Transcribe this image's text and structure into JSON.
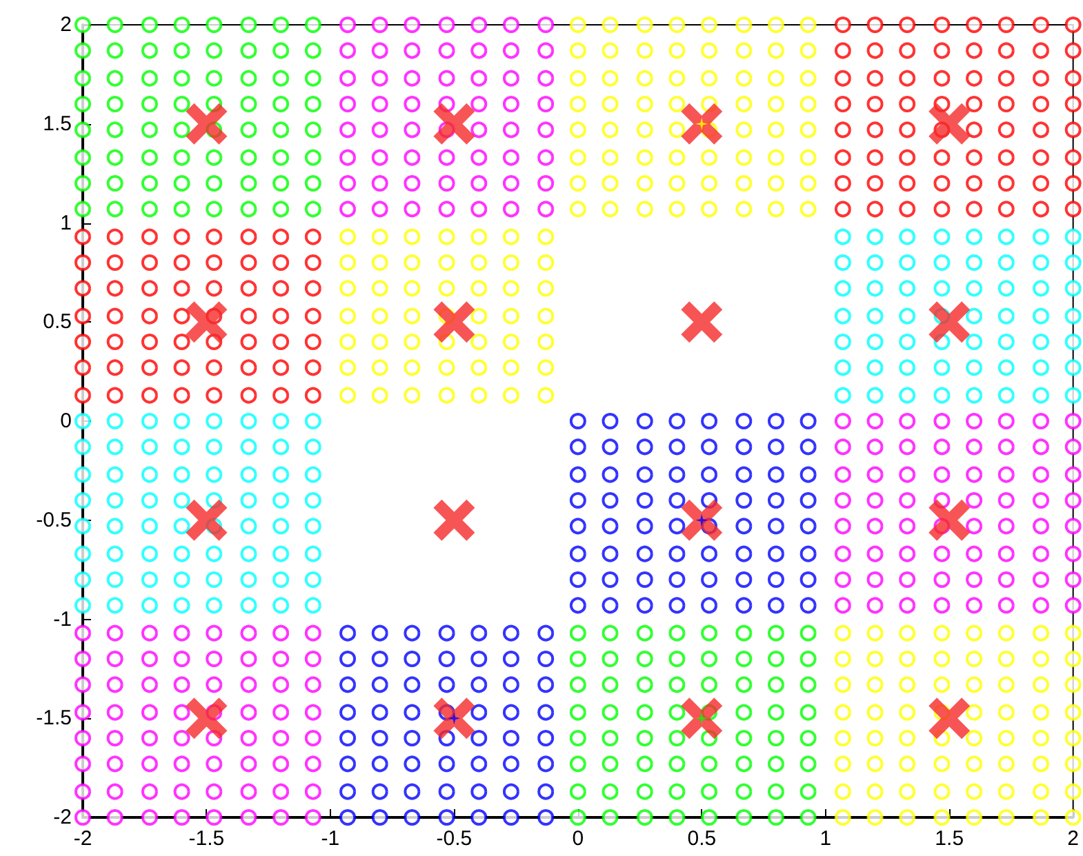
{
  "chart_data": {
    "type": "scatter",
    "xlim": [
      -2,
      2
    ],
    "ylim": [
      -2,
      2
    ],
    "xticks": [
      -2,
      -1.5,
      -1,
      -0.5,
      0,
      0.5,
      1,
      1.5,
      2
    ],
    "yticks": [
      -2,
      -1.5,
      -1,
      -0.5,
      0,
      0.5,
      1,
      1.5,
      2
    ],
    "grid": false,
    "series": [
      {
        "color": "#00ff00",
        "marker": "circle",
        "x": [
          -2,
          -2,
          -2,
          -2,
          -2,
          -2,
          -2,
          -2,
          -1.87,
          -1.87,
          -1.87,
          -1.87,
          -1.87,
          -1.87,
          -1.87,
          -1.87,
          -1.73,
          -1.73,
          -1.73,
          -1.73,
          -1.73,
          -1.73,
          -1.73,
          -1.73,
          -1.6,
          -1.6,
          -1.6,
          -1.6,
          -1.6,
          -1.6,
          -1.6,
          -1.6,
          -1.47,
          -1.47,
          -1.47,
          -1.47,
          -1.47,
          -1.47,
          -1.47,
          -1.47,
          -1.33,
          -1.33,
          -1.33,
          -1.33,
          -1.33,
          -1.33,
          -1.33,
          -1.33,
          -1.2,
          -1.2,
          -1.2,
          -1.2,
          -1.2,
          -1.2,
          -1.2,
          -1.2,
          -1.07,
          -1.07,
          -1.07,
          -1.07,
          -1.07,
          -1.07,
          -1.07,
          -1.07,
          0,
          0,
          0,
          0,
          0,
          0,
          0,
          0,
          0.13,
          0.13,
          0.13,
          0.13,
          0.13,
          0.13,
          0.13,
          0.13,
          0.27,
          0.27,
          0.27,
          0.27,
          0.27,
          0.27,
          0.27,
          0.27,
          0.4,
          0.4,
          0.4,
          0.4,
          0.4,
          0.4,
          0.4,
          0.4,
          0.53,
          0.53,
          0.53,
          0.53,
          0.53,
          0.53,
          0.53,
          0.53,
          0.67,
          0.67,
          0.67,
          0.67,
          0.67,
          0.67,
          0.67,
          0.67,
          0.8,
          0.8,
          0.8,
          0.8,
          0.8,
          0.8,
          0.8,
          0.8,
          0.93,
          0.93,
          0.93,
          0.93,
          0.93,
          0.93,
          0.93,
          0.93
        ],
        "values": [
          2,
          1.87,
          1.73,
          1.6,
          1.47,
          1.33,
          1.2,
          1.07,
          2,
          1.87,
          1.73,
          1.6,
          1.47,
          1.33,
          1.2,
          1.07,
          2,
          1.87,
          1.73,
          1.6,
          1.47,
          1.33,
          1.2,
          1.07,
          2,
          1.87,
          1.73,
          1.6,
          1.47,
          1.33,
          1.2,
          1.07,
          2,
          1.87,
          1.73,
          1.6,
          1.47,
          1.33,
          1.2,
          1.07,
          2,
          1.87,
          1.73,
          1.6,
          1.47,
          1.33,
          1.2,
          1.07,
          2,
          1.87,
          1.73,
          1.6,
          1.47,
          1.33,
          1.2,
          1.07,
          2,
          1.87,
          1.73,
          1.6,
          1.47,
          1.33,
          1.2,
          1.07,
          -1.07,
          -1.2,
          -1.33,
          -1.47,
          -1.6,
          -1.73,
          -1.87,
          -2,
          -1.07,
          -1.2,
          -1.33,
          -1.47,
          -1.6,
          -1.73,
          -1.87,
          -2,
          -1.07,
          -1.2,
          -1.33,
          -1.47,
          -1.6,
          -1.73,
          -1.87,
          -2,
          -1.07,
          -1.2,
          -1.33,
          -1.47,
          -1.6,
          -1.73,
          -1.87,
          -2,
          -1.07,
          -1.2,
          -1.33,
          -1.47,
          -1.6,
          -1.73,
          -1.87,
          -2,
          -1.07,
          -1.2,
          -1.33,
          -1.47,
          -1.6,
          -1.73,
          -1.87,
          -2,
          -1.07,
          -1.2,
          -1.33,
          -1.47,
          -1.6,
          -1.73,
          -1.87,
          -2,
          -1.07,
          -1.2,
          -1.33,
          -1.47,
          -1.6,
          -1.73,
          -1.87,
          -2
        ]
      },
      {
        "color": "#ff00ff",
        "marker": "circle",
        "x": [
          -0.93,
          -0.93,
          -0.93,
          -0.93,
          -0.93,
          -0.93,
          -0.93,
          -0.93,
          -0.8,
          -0.8,
          -0.8,
          -0.8,
          -0.8,
          -0.8,
          -0.8,
          -0.8,
          -0.67,
          -0.67,
          -0.67,
          -0.67,
          -0.67,
          -0.67,
          -0.67,
          -0.67,
          -0.53,
          -0.53,
          -0.53,
          -0.53,
          -0.53,
          -0.53,
          -0.53,
          -0.53,
          -0.4,
          -0.4,
          -0.4,
          -0.4,
          -0.4,
          -0.4,
          -0.4,
          -0.4,
          -0.27,
          -0.27,
          -0.27,
          -0.27,
          -0.27,
          -0.27,
          -0.27,
          -0.27,
          -0.13,
          -0.13,
          -0.13,
          -0.13,
          -0.13,
          -0.13,
          -0.13,
          -0.13,
          1.07,
          1.07,
          1.07,
          1.07,
          1.07,
          1.07,
          1.07,
          1.07,
          1.2,
          1.2,
          1.2,
          1.2,
          1.2,
          1.2,
          1.2,
          1.2,
          1.33,
          1.33,
          1.33,
          1.33,
          1.33,
          1.33,
          1.33,
          1.33,
          1.47,
          1.47,
          1.47,
          1.47,
          1.47,
          1.47,
          1.47,
          1.47,
          1.6,
          1.6,
          1.6,
          1.6,
          1.6,
          1.6,
          1.6,
          1.6,
          1.73,
          1.73,
          1.73,
          1.73,
          1.73,
          1.73,
          1.73,
          1.73,
          1.87,
          1.87,
          1.87,
          1.87,
          1.87,
          1.87,
          1.87,
          1.87,
          2,
          2,
          2,
          2,
          2,
          2,
          2,
          2,
          -2,
          -2,
          -2,
          -2,
          -2,
          -2,
          -2,
          -2,
          -1.87,
          -1.87,
          -1.87,
          -1.87,
          -1.87,
          -1.87,
          -1.87,
          -1.87,
          -1.73,
          -1.73,
          -1.73,
          -1.73,
          -1.73,
          -1.73,
          -1.73,
          -1.73,
          -1.6,
          -1.6,
          -1.6,
          -1.6,
          -1.6,
          -1.6,
          -1.6,
          -1.6,
          -1.47,
          -1.47,
          -1.47,
          -1.47,
          -1.47,
          -1.47,
          -1.47,
          -1.47,
          -1.33,
          -1.33,
          -1.33,
          -1.33,
          -1.33,
          -1.33,
          -1.33,
          -1.33,
          -1.2,
          -1.2,
          -1.2,
          -1.2,
          -1.2,
          -1.2,
          -1.2,
          -1.2,
          -1.07,
          -1.07,
          -1.07,
          -1.07,
          -1.07,
          -1.07,
          -1.07,
          -1.07
        ],
        "values": [
          2,
          1.87,
          1.73,
          1.6,
          1.47,
          1.33,
          1.2,
          1.07,
          2,
          1.87,
          1.73,
          1.6,
          1.47,
          1.33,
          1.2,
          1.07,
          2,
          1.87,
          1.73,
          1.6,
          1.47,
          1.33,
          1.2,
          1.07,
          2,
          1.87,
          1.73,
          1.6,
          1.47,
          1.33,
          1.2,
          1.07,
          2,
          1.87,
          1.73,
          1.6,
          1.47,
          1.33,
          1.2,
          1.07,
          2,
          1.87,
          1.73,
          1.6,
          1.47,
          1.33,
          1.2,
          1.07,
          2,
          1.87,
          1.73,
          1.6,
          1.47,
          1.33,
          1.2,
          1.07,
          0,
          -0.13,
          -0.27,
          -0.4,
          -0.53,
          -0.67,
          -0.8,
          -0.93,
          0,
          -0.13,
          -0.27,
          -0.4,
          -0.53,
          -0.67,
          -0.8,
          -0.93,
          0,
          -0.13,
          -0.27,
          -0.4,
          -0.53,
          -0.67,
          -0.8,
          -0.93,
          0,
          -0.13,
          -0.27,
          -0.4,
          -0.53,
          -0.67,
          -0.8,
          -0.93,
          0,
          -0.13,
          -0.27,
          -0.4,
          -0.53,
          -0.67,
          -0.8,
          -0.93,
          0,
          -0.13,
          -0.27,
          -0.4,
          -0.53,
          -0.67,
          -0.8,
          -0.93,
          0,
          -0.13,
          -0.27,
          -0.4,
          -0.53,
          -0.67,
          -0.8,
          -0.93,
          0,
          -0.13,
          -0.27,
          -0.4,
          -0.53,
          -0.67,
          -0.8,
          -0.93,
          -1.07,
          -1.2,
          -1.33,
          -1.47,
          -1.6,
          -1.73,
          -1.87,
          -2,
          -1.07,
          -1.2,
          -1.33,
          -1.47,
          -1.6,
          -1.73,
          -1.87,
          -2,
          -1.07,
          -1.2,
          -1.33,
          -1.47,
          -1.6,
          -1.73,
          -1.87,
          -2,
          -1.07,
          -1.2,
          -1.33,
          -1.47,
          -1.6,
          -1.73,
          -1.87,
          -2,
          -1.07,
          -1.2,
          -1.33,
          -1.47,
          -1.6,
          -1.73,
          -1.87,
          -2,
          -1.07,
          -1.2,
          -1.33,
          -1.47,
          -1.6,
          -1.73,
          -1.87,
          -2,
          -1.07,
          -1.2,
          -1.33,
          -1.47,
          -1.6,
          -1.73,
          -1.87,
          -2,
          -1.07,
          -1.2,
          -1.33,
          -1.47,
          -1.6,
          -1.73,
          -1.87,
          -2
        ]
      },
      {
        "color": "#ffff00",
        "marker": "circle",
        "x": [
          0,
          0,
          0,
          0,
          0,
          0,
          0,
          0,
          0.13,
          0.13,
          0.13,
          0.13,
          0.13,
          0.13,
          0.13,
          0.13,
          0.27,
          0.27,
          0.27,
          0.27,
          0.27,
          0.27,
          0.27,
          0.27,
          0.4,
          0.4,
          0.4,
          0.4,
          0.4,
          0.4,
          0.4,
          0.4,
          0.53,
          0.53,
          0.53,
          0.53,
          0.53,
          0.53,
          0.53,
          0.53,
          0.67,
          0.67,
          0.67,
          0.67,
          0.67,
          0.67,
          0.67,
          0.67,
          0.8,
          0.8,
          0.8,
          0.8,
          0.8,
          0.8,
          0.8,
          0.8,
          0.93,
          0.93,
          0.93,
          0.93,
          0.93,
          0.93,
          0.93,
          0.93,
          -0.93,
          -0.93,
          -0.93,
          -0.93,
          -0.93,
          -0.93,
          -0.93,
          -0.8,
          -0.8,
          -0.8,
          -0.8,
          -0.8,
          -0.8,
          -0.8,
          -0.67,
          -0.67,
          -0.67,
          -0.67,
          -0.67,
          -0.67,
          -0.67,
          -0.53,
          -0.53,
          -0.53,
          -0.53,
          -0.53,
          -0.53,
          -0.53,
          -0.4,
          -0.4,
          -0.4,
          -0.4,
          -0.4,
          -0.4,
          -0.4,
          -0.27,
          -0.27,
          -0.27,
          -0.27,
          -0.27,
          -0.27,
          -0.27,
          -0.13,
          -0.13,
          -0.13,
          -0.13,
          -0.13,
          -0.13,
          -0.13,
          1.07,
          1.07,
          1.07,
          1.07,
          1.07,
          1.07,
          1.07,
          1.07,
          1.2,
          1.2,
          1.2,
          1.2,
          1.2,
          1.2,
          1.2,
          1.2,
          1.33,
          1.33,
          1.33,
          1.33,
          1.33,
          1.33,
          1.33,
          1.33,
          1.47,
          1.47,
          1.47,
          1.47,
          1.47,
          1.47,
          1.47,
          1.47,
          1.6,
          1.6,
          1.6,
          1.6,
          1.6,
          1.6,
          1.6,
          1.6,
          1.73,
          1.73,
          1.73,
          1.73,
          1.73,
          1.73,
          1.73,
          1.73,
          1.87,
          1.87,
          1.87,
          1.87,
          1.87,
          1.87,
          1.87,
          1.87,
          2,
          2,
          2,
          2,
          2,
          2,
          2,
          2
        ],
        "values": [
          2,
          1.87,
          1.73,
          1.6,
          1.47,
          1.33,
          1.2,
          1.07,
          2,
          1.87,
          1.73,
          1.6,
          1.47,
          1.33,
          1.2,
          1.07,
          2,
          1.87,
          1.73,
          1.6,
          1.47,
          1.33,
          1.2,
          1.07,
          2,
          1.87,
          1.73,
          1.6,
          1.47,
          1.33,
          1.2,
          1.07,
          2,
          1.87,
          1.73,
          1.6,
          1.47,
          1.33,
          1.2,
          1.07,
          2,
          1.87,
          1.73,
          1.6,
          1.47,
          1.33,
          1.2,
          1.07,
          2,
          1.87,
          1.73,
          1.6,
          1.47,
          1.33,
          1.2,
          1.07,
          2,
          1.87,
          1.73,
          1.6,
          1.47,
          1.33,
          1.2,
          1.07,
          0.93,
          0.8,
          0.67,
          0.53,
          0.4,
          0.27,
          0.13,
          0.93,
          0.8,
          0.67,
          0.53,
          0.4,
          0.27,
          0.13,
          0.93,
          0.8,
          0.67,
          0.53,
          0.4,
          0.27,
          0.13,
          0.93,
          0.8,
          0.67,
          0.53,
          0.4,
          0.27,
          0.13,
          0.93,
          0.8,
          0.67,
          0.53,
          0.4,
          0.27,
          0.13,
          0.93,
          0.8,
          0.67,
          0.53,
          0.4,
          0.27,
          0.13,
          0.93,
          0.8,
          0.67,
          0.53,
          0.4,
          0.27,
          0.13,
          -1.07,
          -1.2,
          -1.33,
          -1.47,
          -1.6,
          -1.73,
          -1.87,
          -2,
          -1.07,
          -1.2,
          -1.33,
          -1.47,
          -1.6,
          -1.73,
          -1.87,
          -2,
          -1.07,
          -1.2,
          -1.33,
          -1.47,
          -1.6,
          -1.73,
          -1.87,
          -2,
          -1.07,
          -1.2,
          -1.33,
          -1.47,
          -1.6,
          -1.73,
          -1.87,
          -2,
          -1.07,
          -1.2,
          -1.33,
          -1.47,
          -1.6,
          -1.73,
          -1.87,
          -2,
          -1.07,
          -1.2,
          -1.33,
          -1.47,
          -1.6,
          -1.73,
          -1.87,
          -2,
          -1.07,
          -1.2,
          -1.33,
          -1.47,
          -1.6,
          -1.73,
          -1.87,
          -2,
          -1.07,
          -1.2,
          -1.33,
          -1.47,
          -1.6,
          -1.73,
          -1.87,
          -2
        ]
      },
      {
        "color": "#ff0000",
        "marker": "circle",
        "x": [
          1.07,
          1.07,
          1.07,
          1.07,
          1.07,
          1.07,
          1.07,
          1.07,
          1.2,
          1.2,
          1.2,
          1.2,
          1.2,
          1.2,
          1.2,
          1.2,
          1.33,
          1.33,
          1.33,
          1.33,
          1.33,
          1.33,
          1.33,
          1.33,
          1.47,
          1.47,
          1.47,
          1.47,
          1.47,
          1.47,
          1.47,
          1.47,
          1.6,
          1.6,
          1.6,
          1.6,
          1.6,
          1.6,
          1.6,
          1.6,
          1.73,
          1.73,
          1.73,
          1.73,
          1.73,
          1.73,
          1.73,
          1.73,
          1.87,
          1.87,
          1.87,
          1.87,
          1.87,
          1.87,
          1.87,
          1.87,
          2,
          2,
          2,
          2,
          2,
          2,
          2,
          2,
          -2,
          -2,
          -2,
          -2,
          -2,
          -2,
          -2,
          -1.87,
          -1.87,
          -1.87,
          -1.87,
          -1.87,
          -1.87,
          -1.87,
          -1.73,
          -1.73,
          -1.73,
          -1.73,
          -1.73,
          -1.73,
          -1.73,
          -1.6,
          -1.6,
          -1.6,
          -1.6,
          -1.6,
          -1.6,
          -1.6,
          -1.47,
          -1.47,
          -1.47,
          -1.47,
          -1.47,
          -1.47,
          -1.47,
          -1.33,
          -1.33,
          -1.33,
          -1.33,
          -1.33,
          -1.33,
          -1.33,
          -1.2,
          -1.2,
          -1.2,
          -1.2,
          -1.2,
          -1.2,
          -1.2,
          -1.07,
          -1.07,
          -1.07,
          -1.07,
          -1.07,
          -1.07,
          -1.07
        ],
        "values": [
          2,
          1.87,
          1.73,
          1.6,
          1.47,
          1.33,
          1.2,
          1.07,
          2,
          1.87,
          1.73,
          1.6,
          1.47,
          1.33,
          1.2,
          1.07,
          2,
          1.87,
          1.73,
          1.6,
          1.47,
          1.33,
          1.2,
          1.07,
          2,
          1.87,
          1.73,
          1.6,
          1.47,
          1.33,
          1.2,
          1.07,
          2,
          1.87,
          1.73,
          1.6,
          1.47,
          1.33,
          1.2,
          1.07,
          2,
          1.87,
          1.73,
          1.6,
          1.47,
          1.33,
          1.2,
          1.07,
          2,
          1.87,
          1.73,
          1.6,
          1.47,
          1.33,
          1.2,
          1.07,
          2,
          1.87,
          1.73,
          1.6,
          1.47,
          1.33,
          1.2,
          1.07,
          0.93,
          0.8,
          0.67,
          0.53,
          0.4,
          0.27,
          0.13,
          0.93,
          0.8,
          0.67,
          0.53,
          0.4,
          0.27,
          0.13,
          0.93,
          0.8,
          0.67,
          0.53,
          0.4,
          0.27,
          0.13,
          0.93,
          0.8,
          0.67,
          0.53,
          0.4,
          0.27,
          0.13,
          0.93,
          0.8,
          0.67,
          0.53,
          0.4,
          0.27,
          0.13,
          0.93,
          0.8,
          0.67,
          0.53,
          0.4,
          0.27,
          0.13,
          0.93,
          0.8,
          0.67,
          0.53,
          0.4,
          0.27,
          0.13,
          0.93,
          0.8,
          0.67,
          0.53,
          0.4,
          0.27,
          0.13
        ]
      },
      {
        "color": "#00ffff",
        "marker": "circle",
        "x": [
          1.07,
          1.07,
          1.07,
          1.07,
          1.07,
          1.07,
          1.07,
          1.2,
          1.2,
          1.2,
          1.2,
          1.2,
          1.2,
          1.2,
          1.33,
          1.33,
          1.33,
          1.33,
          1.33,
          1.33,
          1.33,
          1.47,
          1.47,
          1.47,
          1.47,
          1.47,
          1.47,
          1.47,
          1.6,
          1.6,
          1.6,
          1.6,
          1.6,
          1.6,
          1.6,
          1.73,
          1.73,
          1.73,
          1.73,
          1.73,
          1.73,
          1.73,
          1.87,
          1.87,
          1.87,
          1.87,
          1.87,
          1.87,
          1.87,
          2,
          2,
          2,
          2,
          2,
          2,
          2,
          -2,
          -2,
          -2,
          -2,
          -2,
          -2,
          -2,
          -2,
          -1.87,
          -1.87,
          -1.87,
          -1.87,
          -1.87,
          -1.87,
          -1.87,
          -1.87,
          -1.73,
          -1.73,
          -1.73,
          -1.73,
          -1.73,
          -1.73,
          -1.73,
          -1.73,
          -1.6,
          -1.6,
          -1.6,
          -1.6,
          -1.6,
          -1.6,
          -1.6,
          -1.6,
          -1.47,
          -1.47,
          -1.47,
          -1.47,
          -1.47,
          -1.47,
          -1.47,
          -1.47,
          -1.33,
          -1.33,
          -1.33,
          -1.33,
          -1.33,
          -1.33,
          -1.33,
          -1.33,
          -1.2,
          -1.2,
          -1.2,
          -1.2,
          -1.2,
          -1.2,
          -1.2,
          -1.2,
          -1.07,
          -1.07,
          -1.07,
          -1.07,
          -1.07,
          -1.07,
          -1.07,
          -1.07
        ],
        "values": [
          0.93,
          0.8,
          0.67,
          0.53,
          0.4,
          0.27,
          0.13,
          0.93,
          0.8,
          0.67,
          0.53,
          0.4,
          0.27,
          0.13,
          0.93,
          0.8,
          0.67,
          0.53,
          0.4,
          0.27,
          0.13,
          0.93,
          0.8,
          0.67,
          0.53,
          0.4,
          0.27,
          0.13,
          0.93,
          0.8,
          0.67,
          0.53,
          0.4,
          0.27,
          0.13,
          0.93,
          0.8,
          0.67,
          0.53,
          0.4,
          0.27,
          0.13,
          0.93,
          0.8,
          0.67,
          0.53,
          0.4,
          0.27,
          0.13,
          0.93,
          0.8,
          0.67,
          0.53,
          0.4,
          0.27,
          0.13,
          0,
          -0.13,
          -0.27,
          -0.4,
          -0.53,
          -0.67,
          -0.8,
          -0.93,
          0,
          -0.13,
          -0.27,
          -0.4,
          -0.53,
          -0.67,
          -0.8,
          -0.93,
          0,
          -0.13,
          -0.27,
          -0.4,
          -0.53,
          -0.67,
          -0.8,
          -0.93,
          0,
          -0.13,
          -0.27,
          -0.4,
          -0.53,
          -0.67,
          -0.8,
          -0.93,
          0,
          -0.13,
          -0.27,
          -0.4,
          -0.53,
          -0.67,
          -0.8,
          -0.93,
          0,
          -0.13,
          -0.27,
          -0.4,
          -0.53,
          -0.67,
          -0.8,
          -0.93,
          0,
          -0.13,
          -0.27,
          -0.4,
          -0.53,
          -0.67,
          -0.8,
          -0.93,
          0,
          -0.13,
          -0.27,
          -0.4,
          -0.53,
          -0.67,
          -0.8,
          -0.93
        ]
      },
      {
        "color": "#0000ff",
        "marker": "circle",
        "x": [
          0,
          0,
          0,
          0,
          0,
          0,
          0,
          0,
          0.13,
          0.13,
          0.13,
          0.13,
          0.13,
          0.13,
          0.13,
          0.13,
          0.27,
          0.27,
          0.27,
          0.27,
          0.27,
          0.27,
          0.27,
          0.27,
          0.4,
          0.4,
          0.4,
          0.4,
          0.4,
          0.4,
          0.4,
          0.4,
          0.53,
          0.53,
          0.53,
          0.53,
          0.53,
          0.53,
          0.53,
          0.53,
          0.67,
          0.67,
          0.67,
          0.67,
          0.67,
          0.67,
          0.67,
          0.67,
          0.8,
          0.8,
          0.8,
          0.8,
          0.8,
          0.8,
          0.8,
          0.8,
          0.93,
          0.93,
          0.93,
          0.93,
          0.93,
          0.93,
          0.93,
          0.93,
          -0.93,
          -0.93,
          -0.93,
          -0.93,
          -0.93,
          -0.93,
          -0.93,
          -0.93,
          -0.8,
          -0.8,
          -0.8,
          -0.8,
          -0.8,
          -0.8,
          -0.8,
          -0.8,
          -0.67,
          -0.67,
          -0.67,
          -0.67,
          -0.67,
          -0.67,
          -0.67,
          -0.67,
          -0.53,
          -0.53,
          -0.53,
          -0.53,
          -0.53,
          -0.53,
          -0.53,
          -0.53,
          -0.4,
          -0.4,
          -0.4,
          -0.4,
          -0.4,
          -0.4,
          -0.4,
          -0.4,
          -0.27,
          -0.27,
          -0.27,
          -0.27,
          -0.27,
          -0.27,
          -0.27,
          -0.27,
          -0.13,
          -0.13,
          -0.13,
          -0.13,
          -0.13,
          -0.13,
          -0.13,
          -0.13
        ],
        "values": [
          0,
          -0.13,
          -0.27,
          -0.4,
          -0.53,
          -0.67,
          -0.8,
          -0.93,
          0,
          -0.13,
          -0.27,
          -0.4,
          -0.53,
          -0.67,
          -0.8,
          -0.93,
          0,
          -0.13,
          -0.27,
          -0.4,
          -0.53,
          -0.67,
          -0.8,
          -0.93,
          0,
          -0.13,
          -0.27,
          -0.4,
          -0.53,
          -0.67,
          -0.8,
          -0.93,
          0,
          -0.13,
          -0.27,
          -0.4,
          -0.53,
          -0.67,
          -0.8,
          -0.93,
          0,
          -0.13,
          -0.27,
          -0.4,
          -0.53,
          -0.67,
          -0.8,
          -0.93,
          0,
          -0.13,
          -0.27,
          -0.4,
          -0.53,
          -0.67,
          -0.8,
          -0.93,
          0,
          -0.13,
          -0.27,
          -0.4,
          -0.53,
          -0.67,
          -0.8,
          -0.93,
          -1.07,
          -1.2,
          -1.33,
          -1.47,
          -1.6,
          -1.73,
          -1.87,
          -2,
          -1.07,
          -1.2,
          -1.33,
          -1.47,
          -1.6,
          -1.73,
          -1.87,
          -2,
          -1.07,
          -1.2,
          -1.33,
          -1.47,
          -1.6,
          -1.73,
          -1.87,
          -2,
          -1.07,
          -1.2,
          -1.33,
          -1.47,
          -1.6,
          -1.73,
          -1.87,
          -2,
          -1.07,
          -1.2,
          -1.33,
          -1.47,
          -1.6,
          -1.73,
          -1.87,
          -2,
          -1.07,
          -1.2,
          -1.33,
          -1.47,
          -1.6,
          -1.73,
          -1.87,
          -2,
          -1.07,
          -1.2,
          -1.33,
          -1.47,
          -1.6,
          -1.73,
          -1.87,
          -2
        ]
      },
      {
        "color": "#ffff00",
        "marker": "star",
        "x": [
          0.5
        ],
        "values": [
          1.5
        ]
      },
      {
        "color": "#0000ff",
        "marker": "star",
        "x": [
          0.5,
          -0.5
        ],
        "values": [
          -0.5,
          -1.5
        ]
      },
      {
        "color": "#00ff00",
        "marker": "star",
        "x": [
          0.5
        ],
        "values": [
          -1.5
        ]
      },
      {
        "color": "#f52a2a",
        "marker": "cross",
        "x": [
          -1.5,
          -0.5,
          0.5,
          1.5,
          -1.5,
          -0.5,
          0.5,
          1.5,
          -1.5,
          -0.5,
          0.5,
          1.5,
          -1.5,
          -0.5,
          0.5,
          1.5
        ],
        "values": [
          1.5,
          1.5,
          1.5,
          1.5,
          0.5,
          0.5,
          0.5,
          0.5,
          -0.5,
          -0.5,
          -0.5,
          -0.5,
          -1.5,
          -1.5,
          -1.5,
          -1.5
        ]
      }
    ]
  }
}
